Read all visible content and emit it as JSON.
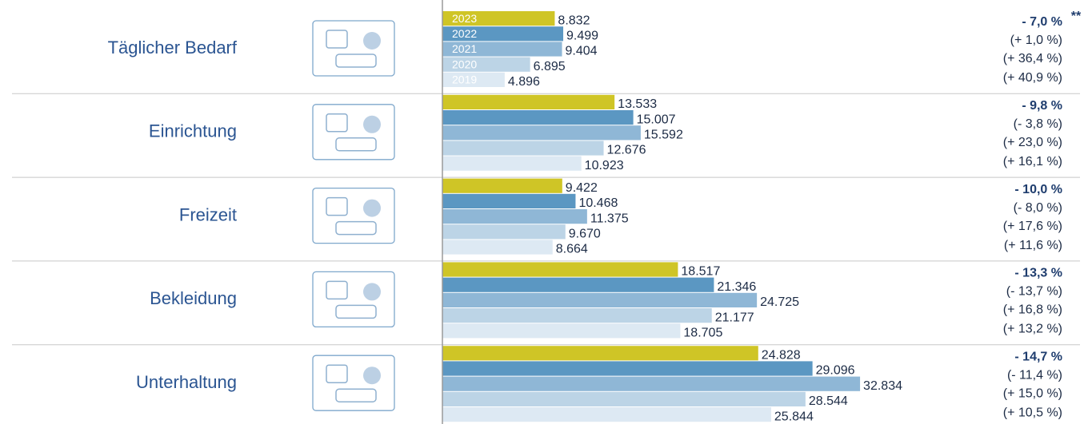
{
  "chart_data": {
    "type": "bar",
    "orientation": "horizontal",
    "categories": [
      "Täglicher Bedarf",
      "Einrichtung",
      "Freizeit",
      "Bekleidung",
      "Unterhaltung"
    ],
    "series": [
      {
        "name": "2023",
        "color": "#cfc526",
        "values": [
          8832,
          13533,
          9422,
          18517,
          24828
        ],
        "value_labels": [
          "8.832",
          "13.533",
          "9.422",
          "18.517",
          "24.828"
        ]
      },
      {
        "name": "2022",
        "color": "#5b97c2",
        "values": [
          9499,
          15007,
          10468,
          21346,
          29096
        ],
        "value_labels": [
          "9.499",
          "15.007",
          "10.468",
          "21.346",
          "29.096"
        ]
      },
      {
        "name": "2021",
        "color": "#8fb7d6",
        "values": [
          9404,
          15592,
          11375,
          24725,
          32834
        ],
        "value_labels": [
          "9.404",
          "15.592",
          "11.375",
          "24.725",
          "32.834"
        ]
      },
      {
        "name": "2020",
        "color": "#bcd4e6",
        "values": [
          6895,
          12676,
          9670,
          21177,
          28544
        ],
        "value_labels": [
          "6.895",
          "12.676",
          "9.670",
          "21.177",
          "28.544"
        ]
      },
      {
        "name": "2019",
        "color": "#dde9f3",
        "values": [
          4896,
          10923,
          8664,
          18705,
          25844
        ],
        "value_labels": [
          "4.896",
          "10.923",
          "8.664",
          "18.705",
          "25.844"
        ]
      }
    ],
    "changes": [
      [
        "- 7,0 %",
        "(+ 1,0 %)",
        "(+ 36,4 %)",
        "(+ 40,9 %)"
      ],
      [
        "- 9,8 %",
        "(- 3,8 %)",
        "(+ 23,0 %)",
        "(+ 16,1 %)"
      ],
      [
        "- 10,0 %",
        "(- 8,0 %)",
        "(+ 17,6 %)",
        "(+ 11,6 %)"
      ],
      [
        "- 13,3 %",
        "(- 13,7 %)",
        "(+ 16,8 %)",
        "(+ 13,2 %)"
      ],
      [
        "- 14,7 %",
        "(- 11,4 %)",
        "(+ 15,0 %)",
        "(+ 10,5 %)"
      ]
    ],
    "annotation": "**"
  }
}
